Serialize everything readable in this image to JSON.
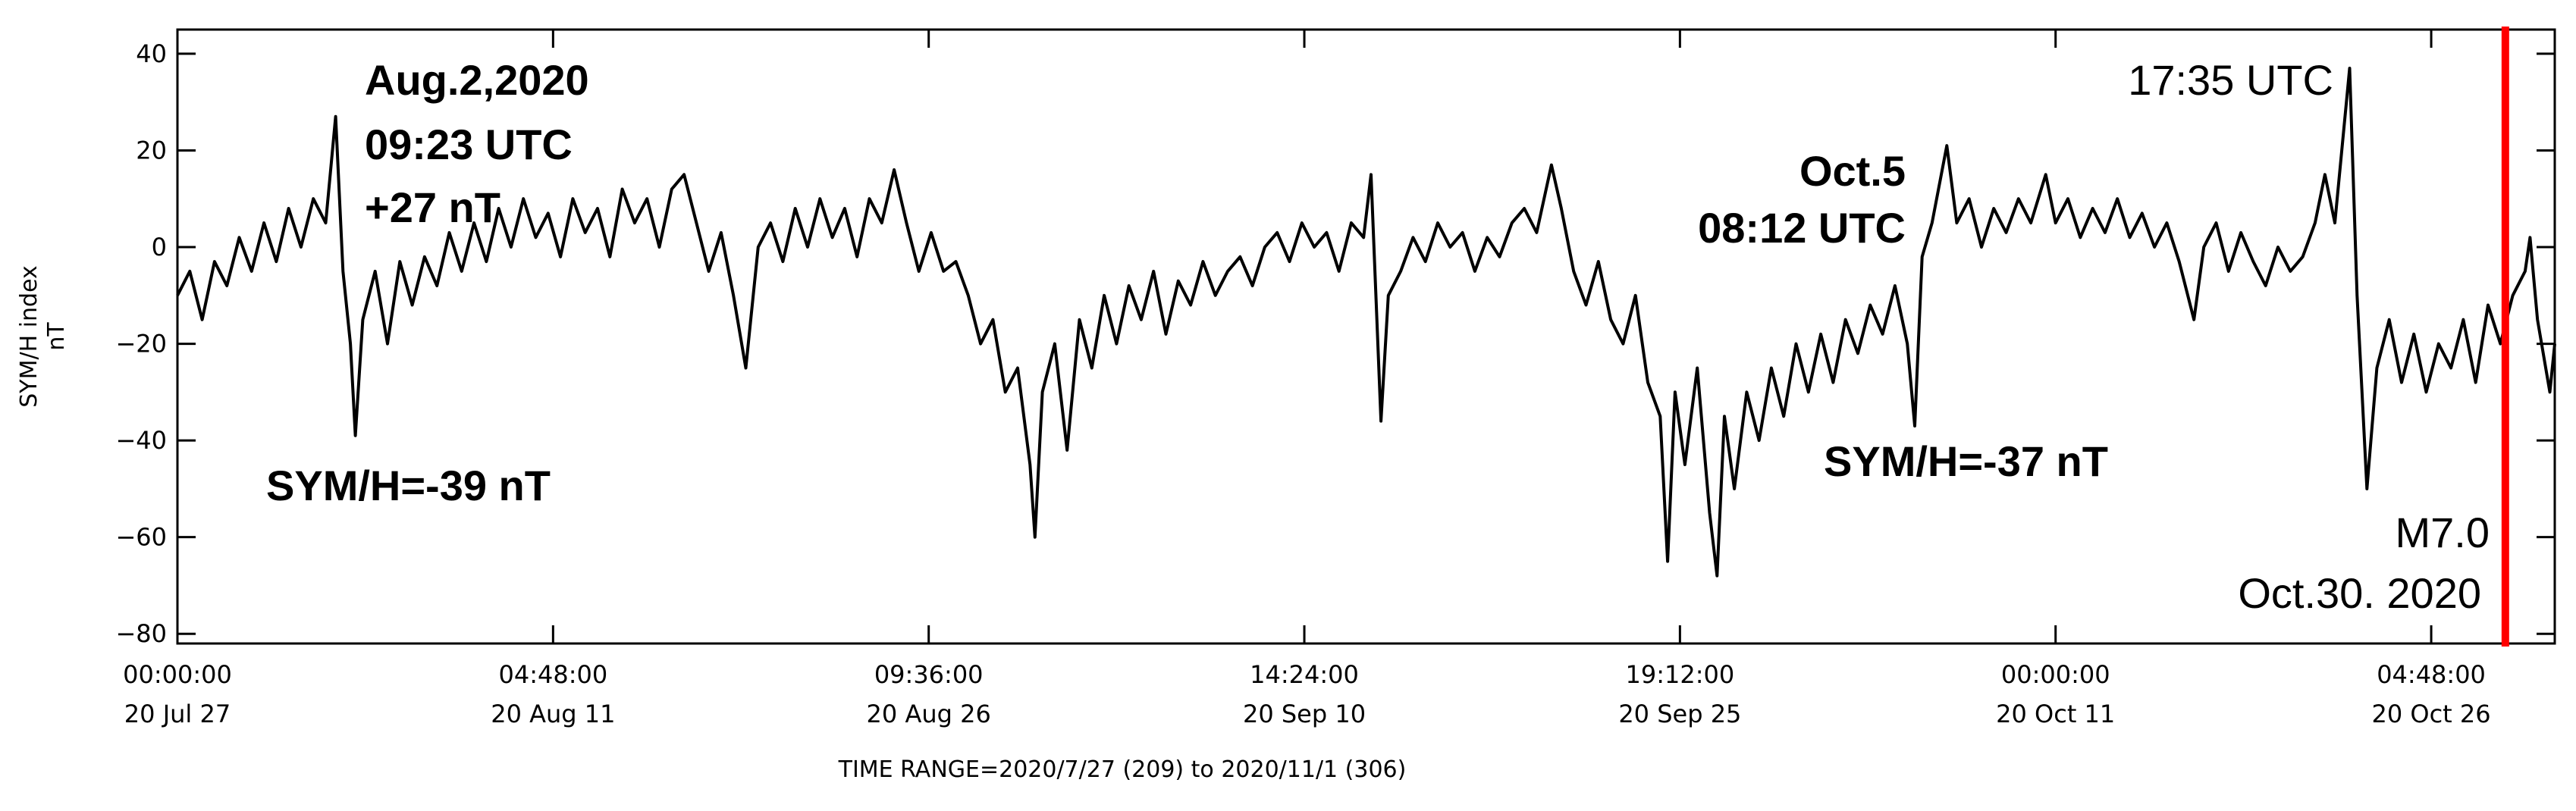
{
  "chart_data": {
    "type": "line",
    "y_label": "SYM/H index",
    "y_unit": "nT",
    "x_label": "TIME RANGE=2020/7/27 (209) to 2020/11/1 (306)",
    "color": "#000000",
    "xlim": [
      209,
      305.2
    ],
    "ylim": [
      -82,
      45
    ],
    "xticks": [
      {
        "value": 209.0,
        "label": "00:00:00",
        "date": "20 Jul 27"
      },
      {
        "value": 224.2,
        "label": "04:48:00",
        "date": "20 Aug 11"
      },
      {
        "value": 239.4,
        "label": "09:36:00",
        "date": "20 Aug 26"
      },
      {
        "value": 254.6,
        "label": "14:24:00",
        "date": "20 Sep 10"
      },
      {
        "value": 269.8,
        "label": "19:12:00",
        "date": "20 Sep 25"
      },
      {
        "value": 285.0,
        "label": "00:00:00",
        "date": "20 Oct 11"
      },
      {
        "value": 300.2,
        "label": "04:48:00",
        "date": "20 Oct 26"
      }
    ],
    "yticks": [
      {
        "value": 40,
        "label": "40"
      },
      {
        "value": 20,
        "label": "20"
      },
      {
        "value": 0,
        "label": "0"
      },
      {
        "value": -20,
        "label": "−20"
      },
      {
        "value": -40,
        "label": "−40"
      },
      {
        "value": -60,
        "label": "−60"
      },
      {
        "value": -80,
        "label": "−80"
      }
    ],
    "event": {
      "x": 303.2,
      "color": "#ff0000"
    },
    "annotations": [
      "Aug.2,2020",
      "09:23 UTC",
      "+27 nT",
      "SYM/H=-39 nT",
      "Oct.5",
      "08:12 UTC",
      "SYM/H=-37 nT",
      "17:35 UTC",
      "M7.0",
      "Oct.30. 2020"
    ],
    "x": [
      209,
      209.5,
      210,
      210.5,
      211,
      211.5,
      212,
      212.5,
      213,
      213.5,
      214,
      214.5,
      215,
      215.4,
      215.7,
      216,
      216.2,
      216.5,
      217,
      217.5,
      218,
      218.5,
      219,
      219.5,
      220,
      220.5,
      221,
      221.5,
      222,
      222.5,
      223,
      223.5,
      224,
      224.5,
      225,
      225.5,
      226,
      226.5,
      227,
      227.5,
      228,
      228.5,
      229,
      229.5,
      230,
      230.5,
      231,
      231.5,
      232,
      232.5,
      233,
      233.5,
      234,
      234.5,
      235,
      235.5,
      236,
      236.5,
      237,
      237.5,
      238,
      238.5,
      239,
      239.5,
      240,
      240.5,
      241,
      241.5,
      242,
      242.5,
      243,
      243.5,
      243.7,
      244,
      244.5,
      245,
      245.5,
      246,
      246.5,
      247,
      247.5,
      248,
      248.5,
      249,
      249.5,
      250,
      250.5,
      251,
      251.5,
      252,
      252.5,
      253,
      253.5,
      254,
      254.5,
      255,
      255.5,
      256,
      256.5,
      257,
      257.3,
      257.7,
      258,
      258.5,
      259,
      259.5,
      260,
      260.5,
      261,
      261.5,
      262,
      262.5,
      263,
      263.5,
      264,
      264.6,
      265,
      265.5,
      266,
      266.5,
      267,
      267.5,
      268,
      268.5,
      269,
      269.3,
      269.6,
      270,
      270.5,
      271,
      271.3,
      271.6,
      272,
      272.5,
      273,
      273.5,
      274,
      274.5,
      275,
      275.5,
      276,
      276.5,
      277,
      277.5,
      278,
      278.5,
      279,
      279.3,
      279.6,
      280,
      280.6,
      281,
      281.5,
      282,
      282.5,
      283,
      283.5,
      284,
      284.6,
      285,
      285.5,
      286,
      286.5,
      287,
      287.5,
      288,
      288.5,
      289,
      289.5,
      290,
      290.6,
      291,
      291.5,
      292,
      292.5,
      293,
      293.5,
      294,
      294.5,
      295,
      295.5,
      295.9,
      296.3,
      296.9,
      297.2,
      297.6,
      298,
      298.5,
      299,
      299.5,
      300,
      300.5,
      301,
      301.5,
      302,
      302.5,
      303,
      303.5,
      304,
      304.2,
      304.5,
      305,
      305.2
    ],
    "values": [
      -10,
      -5,
      -15,
      -3,
      -8,
      2,
      -5,
      5,
      -3,
      8,
      0,
      10,
      5,
      27,
      -5,
      -20,
      -39,
      -15,
      -5,
      -20,
      -3,
      -12,
      -2,
      -8,
      3,
      -5,
      5,
      -3,
      8,
      0,
      10,
      2,
      7,
      -2,
      10,
      3,
      8,
      -2,
      12,
      5,
      10,
      0,
      12,
      15,
      5,
      -5,
      3,
      -10,
      -25,
      0,
      5,
      -3,
      8,
      0,
      10,
      2,
      8,
      -2,
      10,
      5,
      16,
      5,
      -5,
      3,
      -5,
      -3,
      -10,
      -20,
      -15,
      -30,
      -25,
      -45,
      -60,
      -30,
      -20,
      -42,
      -15,
      -25,
      -10,
      -20,
      -8,
      -15,
      -5,
      -18,
      -7,
      -12,
      -3,
      -10,
      -5,
      -2,
      -8,
      0,
      3,
      -3,
      5,
      0,
      3,
      -5,
      5,
      2,
      15,
      -36,
      -10,
      -5,
      2,
      -3,
      5,
      0,
      3,
      -5,
      2,
      -2,
      5,
      8,
      3,
      17,
      8,
      -5,
      -12,
      -3,
      -15,
      -20,
      -10,
      -28,
      -35,
      -65,
      -30,
      -45,
      -25,
      -55,
      -68,
      -35,
      -50,
      -30,
      -40,
      -25,
      -35,
      -20,
      -30,
      -18,
      -28,
      -15,
      -22,
      -12,
      -18,
      -8,
      -20,
      -37,
      -2,
      5,
      21,
      5,
      10,
      0,
      8,
      3,
      10,
      5,
      15,
      5,
      10,
      2,
      8,
      3,
      10,
      2,
      7,
      0,
      5,
      -3,
      -15,
      0,
      5,
      -5,
      3,
      -3,
      -8,
      0,
      -5,
      -2,
      5,
      15,
      5,
      37,
      -10,
      -50,
      -25,
      -15,
      -28,
      -18,
      -30,
      -20,
      -25,
      -15,
      -28,
      -12,
      -20,
      -10,
      -5,
      2,
      -15,
      -30,
      -20
    ]
  }
}
